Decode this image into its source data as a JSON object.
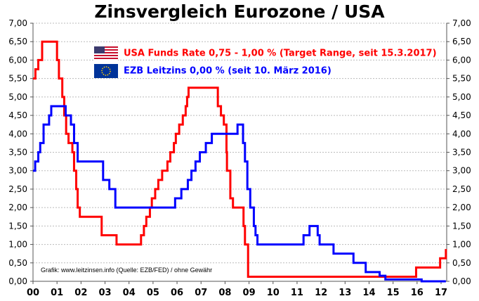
{
  "chart_data": {
    "type": "line",
    "title": "Zinsvergleich Eurozone / USA",
    "xlabel": "",
    "ylabel": "",
    "xlim": [
      0,
      17.25
    ],
    "ylim": [
      0,
      7
    ],
    "x_ticks": [
      "00",
      "01",
      "02",
      "03",
      "04",
      "05",
      "06",
      "07",
      "08",
      "09",
      "10",
      "11",
      "12",
      "13",
      "14",
      "15",
      "16",
      "17"
    ],
    "y_ticks": [
      "0,00",
      "0,50",
      "1,00",
      "1,50",
      "2,00",
      "2,50",
      "3,00",
      "3,50",
      "4,00",
      "4,50",
      "5,00",
      "5,50",
      "6,00",
      "6,50",
      "7,00"
    ],
    "grid": true,
    "legend_placement": "top-center",
    "series": [
      {
        "name": "USA Funds Rate 0,75 - 1,00 % (Target Range, seit 15.3.2017)",
        "color": "#ff0000",
        "step": true,
        "points": [
          [
            0,
            5.5
          ],
          [
            0.1,
            5.75
          ],
          [
            0.22,
            6.0
          ],
          [
            0.38,
            6.5
          ],
          [
            1.0,
            6.0
          ],
          [
            1.08,
            5.5
          ],
          [
            1.22,
            5.0
          ],
          [
            1.3,
            4.5
          ],
          [
            1.38,
            4.0
          ],
          [
            1.48,
            3.75
          ],
          [
            1.64,
            3.5
          ],
          [
            1.71,
            3.0
          ],
          [
            1.8,
            2.5
          ],
          [
            1.86,
            2.0
          ],
          [
            1.95,
            1.75
          ],
          [
            2.86,
            1.25
          ],
          [
            3.48,
            1.0
          ],
          [
            4.5,
            1.25
          ],
          [
            4.62,
            1.5
          ],
          [
            4.72,
            1.75
          ],
          [
            4.87,
            2.0
          ],
          [
            4.95,
            2.25
          ],
          [
            5.09,
            2.5
          ],
          [
            5.22,
            2.75
          ],
          [
            5.38,
            3.0
          ],
          [
            5.6,
            3.25
          ],
          [
            5.72,
            3.5
          ],
          [
            5.87,
            3.75
          ],
          [
            5.95,
            4.0
          ],
          [
            6.09,
            4.25
          ],
          [
            6.24,
            4.5
          ],
          [
            6.36,
            4.75
          ],
          [
            6.42,
            5.0
          ],
          [
            6.48,
            5.25
          ],
          [
            7.7,
            4.75
          ],
          [
            7.83,
            4.5
          ],
          [
            7.95,
            4.25
          ],
          [
            8.06,
            3.5
          ],
          [
            8.08,
            3.0
          ],
          [
            8.22,
            2.25
          ],
          [
            8.33,
            2.0
          ],
          [
            8.77,
            1.5
          ],
          [
            8.83,
            1.0
          ],
          [
            8.96,
            0.125
          ],
          [
            15.96,
            0.375
          ],
          [
            16.96,
            0.625
          ],
          [
            17.2,
            0.875
          ]
        ]
      },
      {
        "name": "EZB Leitzins 0,00 %  (seit 10. März 2016)",
        "color": "#0000ff",
        "step": true,
        "points": [
          [
            0,
            3.0
          ],
          [
            0.09,
            3.25
          ],
          [
            0.22,
            3.5
          ],
          [
            0.3,
            3.75
          ],
          [
            0.44,
            4.25
          ],
          [
            0.67,
            4.5
          ],
          [
            0.76,
            4.75
          ],
          [
            1.36,
            4.5
          ],
          [
            1.58,
            4.25
          ],
          [
            1.71,
            3.75
          ],
          [
            1.86,
            3.25
          ],
          [
            2.92,
            2.75
          ],
          [
            3.18,
            2.5
          ],
          [
            3.43,
            2.0
          ],
          [
            5.92,
            2.25
          ],
          [
            6.18,
            2.5
          ],
          [
            6.45,
            2.75
          ],
          [
            6.6,
            3.0
          ],
          [
            6.77,
            3.25
          ],
          [
            6.95,
            3.5
          ],
          [
            7.2,
            3.75
          ],
          [
            7.45,
            4.0
          ],
          [
            8.52,
            4.25
          ],
          [
            8.75,
            3.75
          ],
          [
            8.83,
            3.25
          ],
          [
            8.93,
            2.5
          ],
          [
            9.05,
            2.0
          ],
          [
            9.2,
            1.5
          ],
          [
            9.27,
            1.25
          ],
          [
            9.35,
            1.0
          ],
          [
            11.27,
            1.25
          ],
          [
            11.52,
            1.5
          ],
          [
            11.86,
            1.25
          ],
          [
            11.94,
            1.0
          ],
          [
            12.52,
            0.75
          ],
          [
            13.35,
            0.5
          ],
          [
            13.86,
            0.25
          ],
          [
            14.44,
            0.15
          ],
          [
            14.68,
            0.05
          ],
          [
            16.19,
            0.0
          ],
          [
            17.2,
            0.0
          ]
        ]
      }
    ]
  },
  "credit": "Grafik: www.leitzinsen.info (Quelle: EZB/FED) / ohne Gewähr",
  "legend_icons": [
    "us-flag-icon",
    "eu-flag-icon"
  ]
}
